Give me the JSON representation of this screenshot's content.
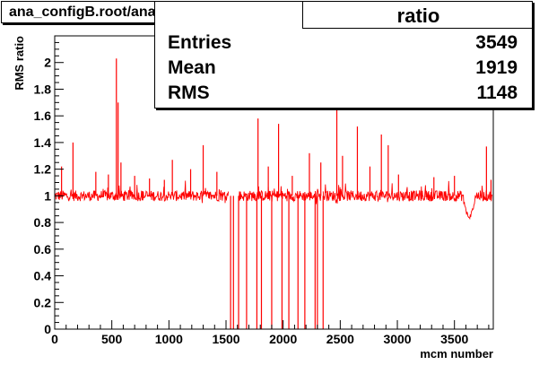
{
  "title": "ana_configB.root/ana_configC.root",
  "stats": {
    "title": "ratio",
    "rows": [
      {
        "label": "Entries",
        "value": "3549"
      },
      {
        "label": "Mean",
        "value": "1919"
      },
      {
        "label": "RMS",
        "value": "1148"
      }
    ]
  },
  "colors": {
    "line": "#ff0000",
    "axis": "#000000"
  },
  "chart_data": {
    "type": "line",
    "xlabel": "mcm number",
    "ylabel": "RMS ratio",
    "xlim": [
      0,
      3840
    ],
    "ylim": [
      0,
      2.2
    ],
    "x_ticks": [
      0,
      500,
      1000,
      1500,
      2000,
      2500,
      3000,
      3500
    ],
    "y_ticks": [
      0,
      0.2,
      0.4,
      0.6,
      0.8,
      1,
      1.2,
      1.4,
      1.6,
      1.8,
      2
    ],
    "x_tick_labels": [
      "0",
      "500",
      "1000",
      "1500",
      "2000",
      "2500",
      "3000",
      "3500"
    ],
    "y_tick_labels": [
      "0",
      "0.2",
      "0.4",
      "0.6",
      "0.8",
      "1",
      "1.2",
      "1.4",
      "1.6",
      "1.8",
      "2"
    ],
    "series": [
      {
        "baseline_segments": [
          [
            0,
            1520
          ],
          [
            1610,
            2330
          ],
          [
            2350,
            3830
          ]
        ],
        "baseline_value": 1.0,
        "spikes": [
          {
            "x": 60,
            "y": 1.22
          },
          {
            "x": 160,
            "y": 1.4
          },
          {
            "x": 360,
            "y": 1.18
          },
          {
            "x": 470,
            "y": 1.16
          },
          {
            "x": 540,
            "y": 2.03
          },
          {
            "x": 555,
            "y": 1.7
          },
          {
            "x": 580,
            "y": 1.25
          },
          {
            "x": 700,
            "y": 1.15
          },
          {
            "x": 830,
            "y": 1.13
          },
          {
            "x": 960,
            "y": 1.12
          },
          {
            "x": 1030,
            "y": 1.27
          },
          {
            "x": 1190,
            "y": 1.2
          },
          {
            "x": 1300,
            "y": 1.38
          },
          {
            "x": 1420,
            "y": 1.18
          },
          {
            "x": 1780,
            "y": 1.58
          },
          {
            "x": 1870,
            "y": 1.22
          },
          {
            "x": 1960,
            "y": 1.54
          },
          {
            "x": 2080,
            "y": 1.15
          },
          {
            "x": 2230,
            "y": 1.32
          },
          {
            "x": 2330,
            "y": 1.25
          },
          {
            "x": 2470,
            "y": 1.68
          },
          {
            "x": 2520,
            "y": 1.3
          },
          {
            "x": 2650,
            "y": 1.52
          },
          {
            "x": 2760,
            "y": 1.22
          },
          {
            "x": 2860,
            "y": 1.46
          },
          {
            "x": 2920,
            "y": 1.38
          },
          {
            "x": 3010,
            "y": 1.16
          },
          {
            "x": 3320,
            "y": 1.14
          },
          {
            "x": 3500,
            "y": 1.15
          },
          {
            "x": 3780,
            "y": 1.37
          },
          {
            "x": 3820,
            "y": 1.12
          }
        ],
        "dips_to_zero": [
          1540,
          1565,
          1680,
          1770,
          1810,
          1900,
          1990,
          2050,
          2130,
          2190,
          2280,
          2300
        ],
        "low_region": {
          "x": [
            3580,
            3680
          ],
          "y": 0.84
        }
      }
    ]
  }
}
